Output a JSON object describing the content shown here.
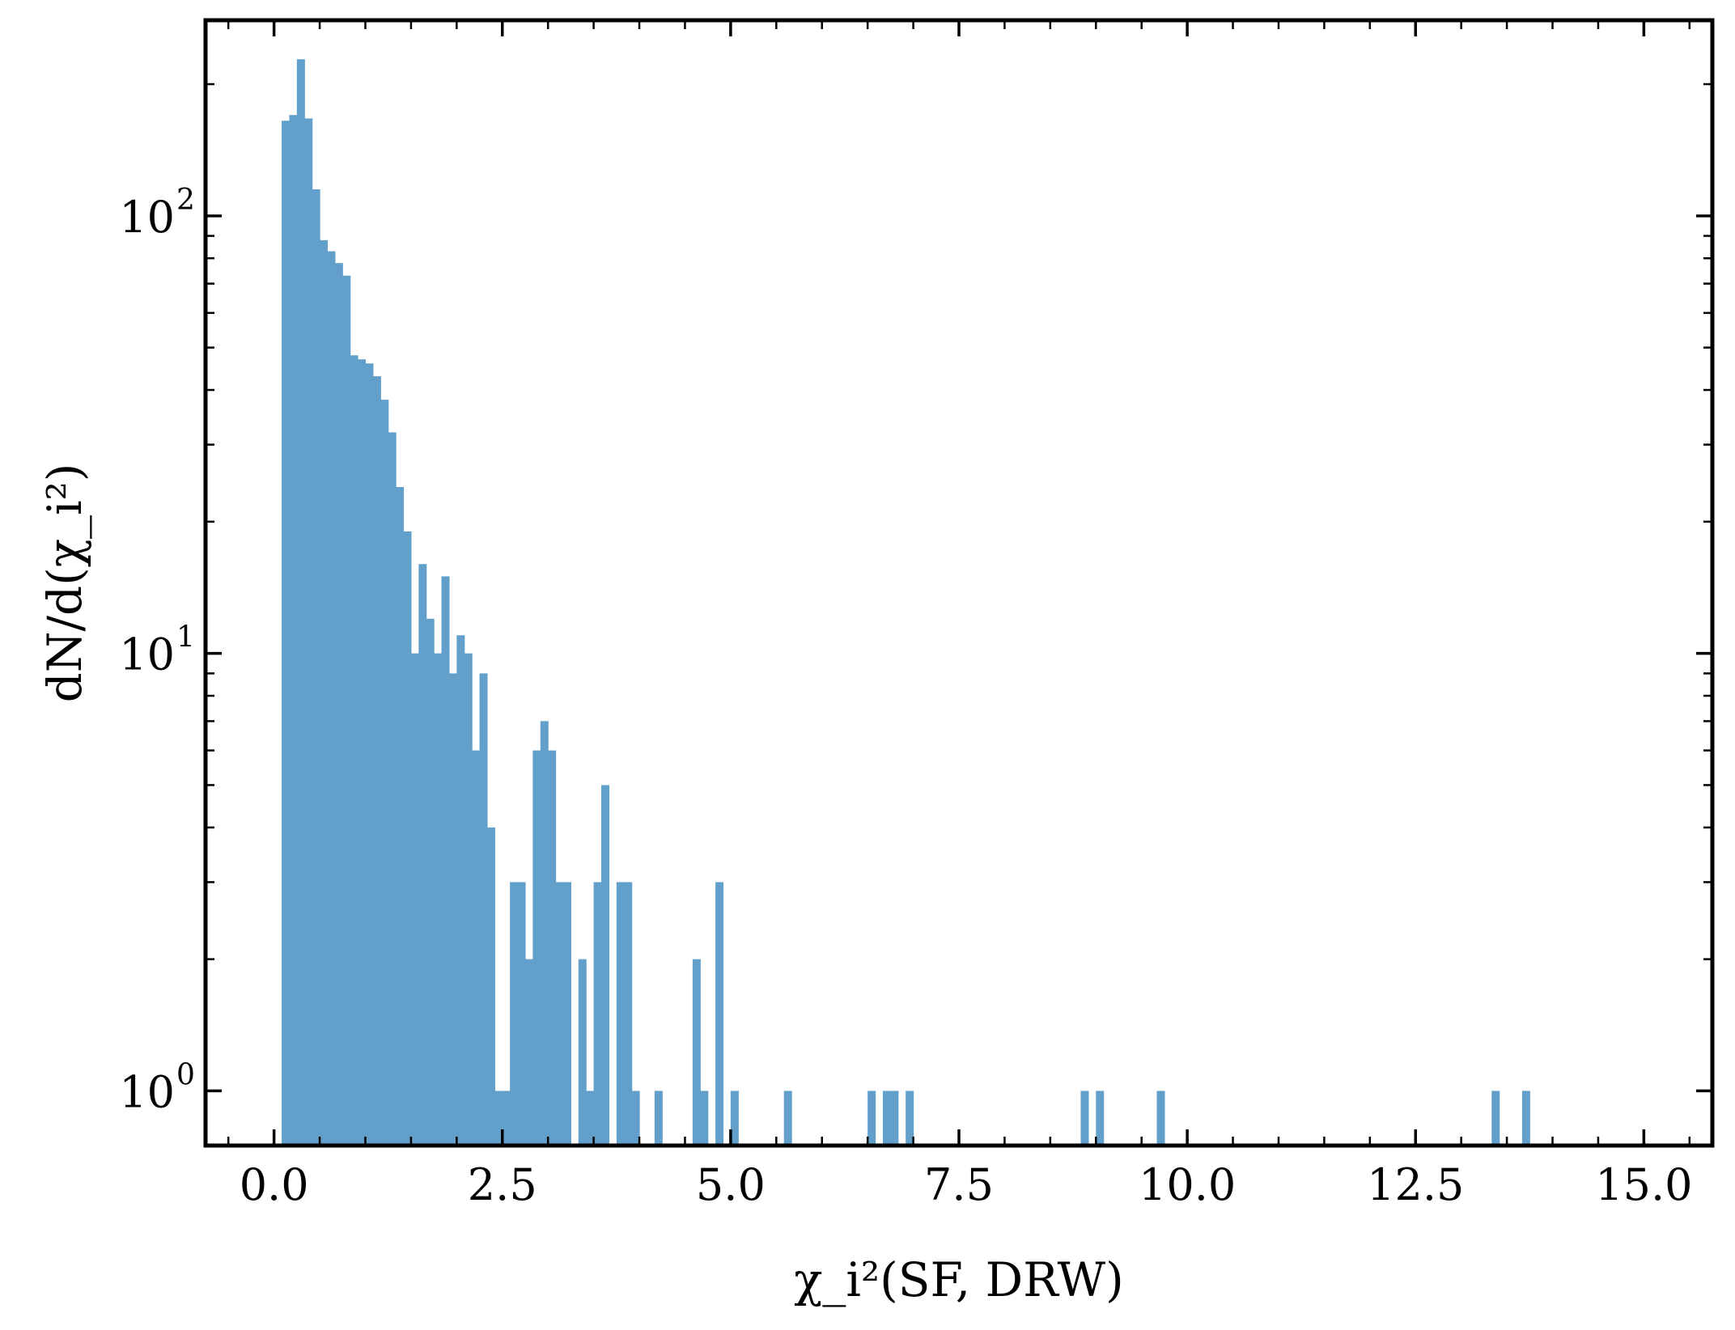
{
  "chart_data": {
    "type": "bar",
    "subtype": "histogram",
    "xlabel": "χ_i²(SF, DRW)",
    "ylabel": "dN/d(χ_i²)",
    "yscale": "log",
    "xlim": [
      -0.75,
      15.75
    ],
    "ylim": [
      0.75,
      280
    ],
    "x_ticks": [
      0.0,
      2.5,
      5.0,
      7.5,
      10.0,
      12.5,
      15.0
    ],
    "x_tick_labels": [
      "0.0",
      "2.5",
      "5.0",
      "7.5",
      "10.0",
      "12.5",
      "15.0"
    ],
    "y_ticks": [
      1,
      10,
      100
    ],
    "y_tick_labels": [
      {
        "base": "10",
        "exp": "0"
      },
      {
        "base": "10",
        "exp": "1"
      },
      {
        "base": "10",
        "exp": "2"
      }
    ],
    "bin_width": 0.0833,
    "grid": false,
    "bar_color": "#62a0cb",
    "bins": [
      {
        "x": 0.0833,
        "y": 165
      },
      {
        "x": 0.1667,
        "y": 170
      },
      {
        "x": 0.25,
        "y": 228
      },
      {
        "x": 0.3333,
        "y": 167
      },
      {
        "x": 0.4167,
        "y": 115
      },
      {
        "x": 0.5,
        "y": 88
      },
      {
        "x": 0.5833,
        "y": 83
      },
      {
        "x": 0.6667,
        "y": 78
      },
      {
        "x": 0.75,
        "y": 73
      },
      {
        "x": 0.8333,
        "y": 48
      },
      {
        "x": 0.9167,
        "y": 47
      },
      {
        "x": 1.0,
        "y": 46
      },
      {
        "x": 1.0833,
        "y": 43
      },
      {
        "x": 1.1667,
        "y": 38
      },
      {
        "x": 1.25,
        "y": 32
      },
      {
        "x": 1.3333,
        "y": 24
      },
      {
        "x": 1.4167,
        "y": 19
      },
      {
        "x": 1.5,
        "y": 10
      },
      {
        "x": 1.5833,
        "y": 16
      },
      {
        "x": 1.6667,
        "y": 12
      },
      {
        "x": 1.75,
        "y": 10
      },
      {
        "x": 1.8333,
        "y": 15
      },
      {
        "x": 1.9167,
        "y": 9
      },
      {
        "x": 2.0,
        "y": 11
      },
      {
        "x": 2.0833,
        "y": 10
      },
      {
        "x": 2.1667,
        "y": 6
      },
      {
        "x": 2.25,
        "y": 9
      },
      {
        "x": 2.3333,
        "y": 4
      },
      {
        "x": 2.4167,
        "y": 1
      },
      {
        "x": 2.5,
        "y": 1
      },
      {
        "x": 2.5833,
        "y": 3
      },
      {
        "x": 2.6667,
        "y": 3
      },
      {
        "x": 2.75,
        "y": 2
      },
      {
        "x": 2.8333,
        "y": 6
      },
      {
        "x": 2.9167,
        "y": 7
      },
      {
        "x": 3.0,
        "y": 6
      },
      {
        "x": 3.0833,
        "y": 3
      },
      {
        "x": 3.1667,
        "y": 3
      },
      {
        "x": 3.3333,
        "y": 2
      },
      {
        "x": 3.4167,
        "y": 1
      },
      {
        "x": 3.5,
        "y": 3
      },
      {
        "x": 3.5833,
        "y": 5
      },
      {
        "x": 3.75,
        "y": 3
      },
      {
        "x": 3.8333,
        "y": 3
      },
      {
        "x": 3.9167,
        "y": 1
      },
      {
        "x": 4.1667,
        "y": 1
      },
      {
        "x": 4.5833,
        "y": 2
      },
      {
        "x": 4.6667,
        "y": 1
      },
      {
        "x": 4.8333,
        "y": 3
      },
      {
        "x": 5.0,
        "y": 1
      },
      {
        "x": 5.5833,
        "y": 1
      },
      {
        "x": 6.5,
        "y": 1
      },
      {
        "x": 6.6667,
        "y": 1
      },
      {
        "x": 6.75,
        "y": 1
      },
      {
        "x": 6.9167,
        "y": 1
      },
      {
        "x": 8.8333,
        "y": 1
      },
      {
        "x": 9.0,
        "y": 1
      },
      {
        "x": 9.6667,
        "y": 1
      },
      {
        "x": 13.3333,
        "y": 1
      },
      {
        "x": 13.6667,
        "y": 1
      }
    ]
  }
}
